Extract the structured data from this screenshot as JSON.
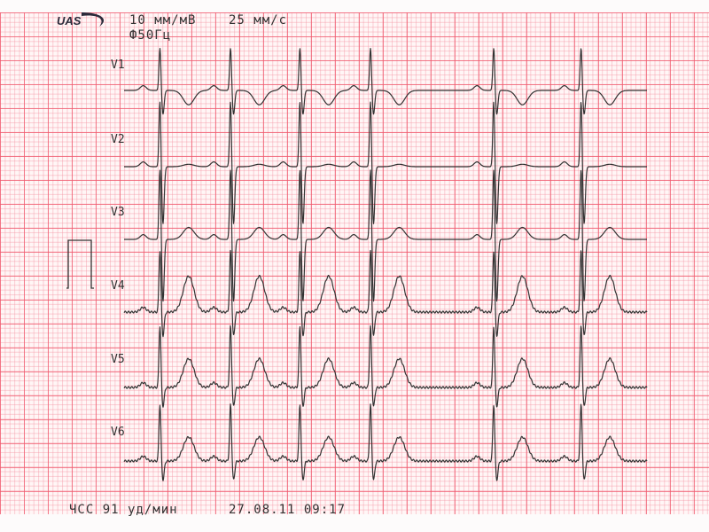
{
  "header": {
    "logo_text": "UAS",
    "gain": "10 мм/мВ",
    "speed": "25 мм/с",
    "filter": "Ф50Гц"
  },
  "footer": {
    "heart_rate": "ЧСС 91 уд/мин",
    "datetime": "27.08.11 09:17"
  },
  "colors": {
    "grid": "#f05a6e",
    "trace": "#333333",
    "paper": "#fff6f6"
  },
  "chart_data": {
    "type": "line",
    "paper_speed_mm_s": 25,
    "gain_mm_mV": 10,
    "beat_times_s": [
      0.3,
      0.89,
      1.47,
      2.06,
      3.09,
      3.82
    ],
    "leads": [
      {
        "label": "V1",
        "r_mV": 0.9,
        "s_mV": -0.5,
        "t_mV": -0.3
      },
      {
        "label": "V2",
        "r_mV": 1.4,
        "s_mV": -1.2,
        "t_mV": 0.05
      },
      {
        "label": "V3",
        "r_mV": 1.5,
        "s_mV": -1.3,
        "t_mV": 0.25
      },
      {
        "label": "V4",
        "r_mV": 1.3,
        "s_mV": -0.5,
        "t_mV": 0.75
      },
      {
        "label": "V5",
        "r_mV": 1.3,
        "s_mV": -0.4,
        "t_mV": 0.6
      },
      {
        "label": "V6",
        "r_mV": 1.2,
        "s_mV": -0.4,
        "t_mV": 0.5
      }
    ],
    "calibration_mV": 1
  }
}
